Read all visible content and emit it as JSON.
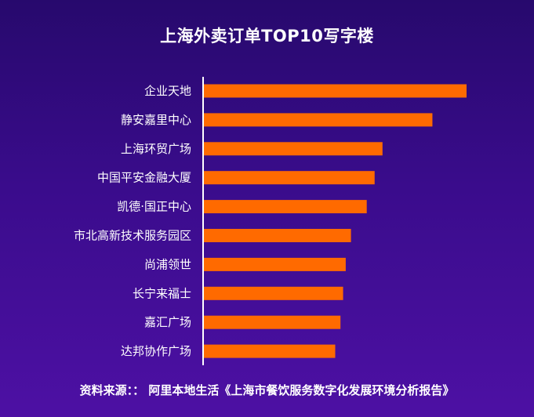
{
  "colors": {
    "bar": "#ff6a00",
    "text": "#ffffff",
    "axis": "#ffffff"
  },
  "chart_data": {
    "type": "bar",
    "orientation": "horizontal",
    "title": "上海外卖订单TOP10写字楼",
    "categories": [
      "企业天地",
      "静安嘉里中心",
      "上海环贸广场",
      "中国平安金融大厦",
      "凯德·国正中心",
      "市北高新技术服务园区",
      "尚浦领世",
      "长宁来福士",
      "嘉汇广场",
      "达邦协作广场"
    ],
    "values": [
      100,
      87,
      68,
      65,
      62,
      56,
      54,
      53,
      52,
      50
    ],
    "xlim": [
      0,
      100
    ],
    "grid": false,
    "legend": "none"
  },
  "source": "资料来源：： 阿里本地生活《上海市餐饮服务数字化发展环境分析报告》"
}
